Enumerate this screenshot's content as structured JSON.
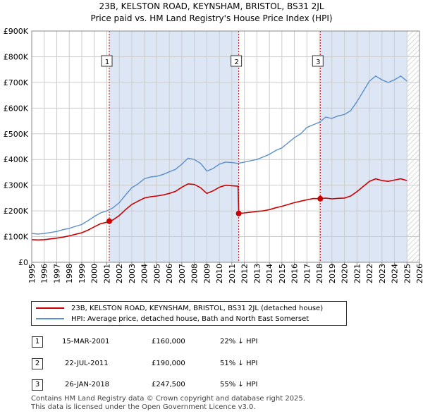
{
  "title": "23B, KELSTON ROAD, KEYNSHAM, BRISTOL, BS31 2JL",
  "subtitle": "Price paid vs. HM Land Registry's House Price Index (HPI)",
  "colors": {
    "property": "#cc0000",
    "hpi": "#5b8fc9",
    "shade": "#dde6f5",
    "grid": "#cccccc"
  },
  "chart_data": {
    "type": "line",
    "xlim": [
      1995,
      2026
    ],
    "ylim": [
      0,
      900000
    ],
    "y_ticks": [
      {
        "value": 0,
        "label": "£0"
      },
      {
        "value": 100000,
        "label": "£100K"
      },
      {
        "value": 200000,
        "label": "£200K"
      },
      {
        "value": 300000,
        "label": "£300K"
      },
      {
        "value": 400000,
        "label": "£400K"
      },
      {
        "value": 500000,
        "label": "£500K"
      },
      {
        "value": 600000,
        "label": "£600K"
      },
      {
        "value": 700000,
        "label": "£700K"
      },
      {
        "value": 800000,
        "label": "£800K"
      },
      {
        "value": 900000,
        "label": "£900K"
      }
    ],
    "x_ticks": [
      "1995",
      "1996",
      "1997",
      "1998",
      "1999",
      "2000",
      "2001",
      "2002",
      "2003",
      "2004",
      "2005",
      "2006",
      "2007",
      "2008",
      "2009",
      "2010",
      "2011",
      "2012",
      "2013",
      "2014",
      "2015",
      "2016",
      "2017",
      "2018",
      "2019",
      "2020",
      "2021",
      "2022",
      "2023",
      "2024",
      "2025",
      "2026"
    ],
    "shaded_ranges": [
      [
        2001.2,
        2011.55
      ],
      [
        2018.07,
        2025.0
      ]
    ],
    "future_hatch_from": 2025.0,
    "series": [
      {
        "name": "HPI: Average price, detached house, Bath and North East Somerset",
        "key": "hpi",
        "points": [
          [
            1995,
            112000
          ],
          [
            1995.5,
            110000
          ],
          [
            1996,
            112000
          ],
          [
            1996.5,
            116000
          ],
          [
            1997,
            120000
          ],
          [
            1997.5,
            127000
          ],
          [
            1998,
            132000
          ],
          [
            1998.5,
            140000
          ],
          [
            1999,
            147000
          ],
          [
            1999.5,
            162000
          ],
          [
            2000,
            178000
          ],
          [
            2000.5,
            192000
          ],
          [
            2001,
            200000
          ],
          [
            2001.5,
            212000
          ],
          [
            2002,
            232000
          ],
          [
            2002.5,
            262000
          ],
          [
            2003,
            290000
          ],
          [
            2003.5,
            305000
          ],
          [
            2004,
            325000
          ],
          [
            2004.5,
            332000
          ],
          [
            2005,
            335000
          ],
          [
            2005.5,
            342000
          ],
          [
            2006,
            352000
          ],
          [
            2006.5,
            362000
          ],
          [
            2007,
            382000
          ],
          [
            2007.5,
            405000
          ],
          [
            2008,
            400000
          ],
          [
            2008.5,
            385000
          ],
          [
            2009,
            355000
          ],
          [
            2009.5,
            365000
          ],
          [
            2010,
            382000
          ],
          [
            2010.5,
            390000
          ],
          [
            2011,
            388000
          ],
          [
            2011.5,
            385000
          ],
          [
            2012,
            390000
          ],
          [
            2012.5,
            395000
          ],
          [
            2013,
            400000
          ],
          [
            2013.5,
            410000
          ],
          [
            2014,
            420000
          ],
          [
            2014.5,
            435000
          ],
          [
            2015,
            445000
          ],
          [
            2015.5,
            465000
          ],
          [
            2016,
            485000
          ],
          [
            2016.5,
            500000
          ],
          [
            2017,
            525000
          ],
          [
            2017.5,
            535000
          ],
          [
            2018,
            545000
          ],
          [
            2018.5,
            565000
          ],
          [
            2019,
            560000
          ],
          [
            2019.5,
            570000
          ],
          [
            2020,
            575000
          ],
          [
            2020.5,
            590000
          ],
          [
            2021,
            625000
          ],
          [
            2021.5,
            665000
          ],
          [
            2022,
            705000
          ],
          [
            2022.5,
            725000
          ],
          [
            2023,
            710000
          ],
          [
            2023.5,
            700000
          ],
          [
            2024,
            710000
          ],
          [
            2024.5,
            725000
          ],
          [
            2025,
            705000
          ]
        ]
      },
      {
        "name": "23B, KELSTON ROAD, KEYNSHAM, BRISTOL, BS31 2JL (detached house)",
        "key": "property",
        "points": [
          [
            1995,
            88000
          ],
          [
            1995.5,
            87000
          ],
          [
            1996,
            88000
          ],
          [
            1996.5,
            91000
          ],
          [
            1997,
            94000
          ],
          [
            1997.5,
            98000
          ],
          [
            1998,
            103000
          ],
          [
            1998.5,
            109000
          ],
          [
            1999,
            115000
          ],
          [
            1999.5,
            125000
          ],
          [
            2000,
            138000
          ],
          [
            2000.5,
            150000
          ],
          [
            2001,
            156000
          ],
          [
            2001.2,
            160000
          ],
          [
            2001.5,
            165000
          ],
          [
            2002,
            182000
          ],
          [
            2002.5,
            205000
          ],
          [
            2003,
            225000
          ],
          [
            2003.5,
            238000
          ],
          [
            2004,
            250000
          ],
          [
            2004.5,
            255000
          ],
          [
            2005,
            258000
          ],
          [
            2005.5,
            262000
          ],
          [
            2006,
            268000
          ],
          [
            2006.5,
            276000
          ],
          [
            2007,
            292000
          ],
          [
            2007.5,
            305000
          ],
          [
            2008,
            303000
          ],
          [
            2008.5,
            290000
          ],
          [
            2009,
            268000
          ],
          [
            2009.5,
            278000
          ],
          [
            2010,
            292000
          ],
          [
            2010.5,
            300000
          ],
          [
            2011,
            298000
          ],
          [
            2011.5,
            296000
          ],
          [
            2011.55,
            190000
          ],
          [
            2012,
            192000
          ],
          [
            2012.5,
            195000
          ],
          [
            2013,
            198000
          ],
          [
            2013.5,
            200000
          ],
          [
            2014,
            205000
          ],
          [
            2014.5,
            212000
          ],
          [
            2015,
            218000
          ],
          [
            2015.5,
            225000
          ],
          [
            2016,
            232000
          ],
          [
            2016.5,
            238000
          ],
          [
            2017,
            243000
          ],
          [
            2017.5,
            248000
          ],
          [
            2018.07,
            247500
          ],
          [
            2018.5,
            250000
          ],
          [
            2019,
            247000
          ],
          [
            2019.5,
            249000
          ],
          [
            2020,
            250000
          ],
          [
            2020.5,
            258000
          ],
          [
            2021,
            275000
          ],
          [
            2021.5,
            295000
          ],
          [
            2022,
            315000
          ],
          [
            2022.5,
            325000
          ],
          [
            2023,
            318000
          ],
          [
            2023.5,
            315000
          ],
          [
            2024,
            320000
          ],
          [
            2024.5,
            325000
          ],
          [
            2025,
            318000
          ]
        ]
      }
    ],
    "sales": [
      {
        "marker": "1",
        "year": 2001.2,
        "value": 160000
      },
      {
        "marker": "2",
        "year": 2011.55,
        "value": 190000
      },
      {
        "marker": "3",
        "year": 2018.07,
        "value": 247500
      }
    ]
  },
  "legend": {
    "property_label": "23B, KELSTON ROAD, KEYNSHAM, BRISTOL, BS31 2JL (detached house)",
    "hpi_label": "HPI: Average price, detached house, Bath and North East Somerset"
  },
  "transactions": [
    {
      "marker": "1",
      "date": "15-MAR-2001",
      "price": "£160,000",
      "pct": "22% ↓ HPI"
    },
    {
      "marker": "2",
      "date": "22-JUL-2011",
      "price": "£190,000",
      "pct": "51% ↓ HPI"
    },
    {
      "marker": "3",
      "date": "26-JAN-2018",
      "price": "£247,500",
      "pct": "55% ↓ HPI"
    }
  ],
  "footer": {
    "line1": "Contains HM Land Registry data © Crown copyright and database right 2025.",
    "line2": "This data is licensed under the Open Government Licence v3.0."
  }
}
